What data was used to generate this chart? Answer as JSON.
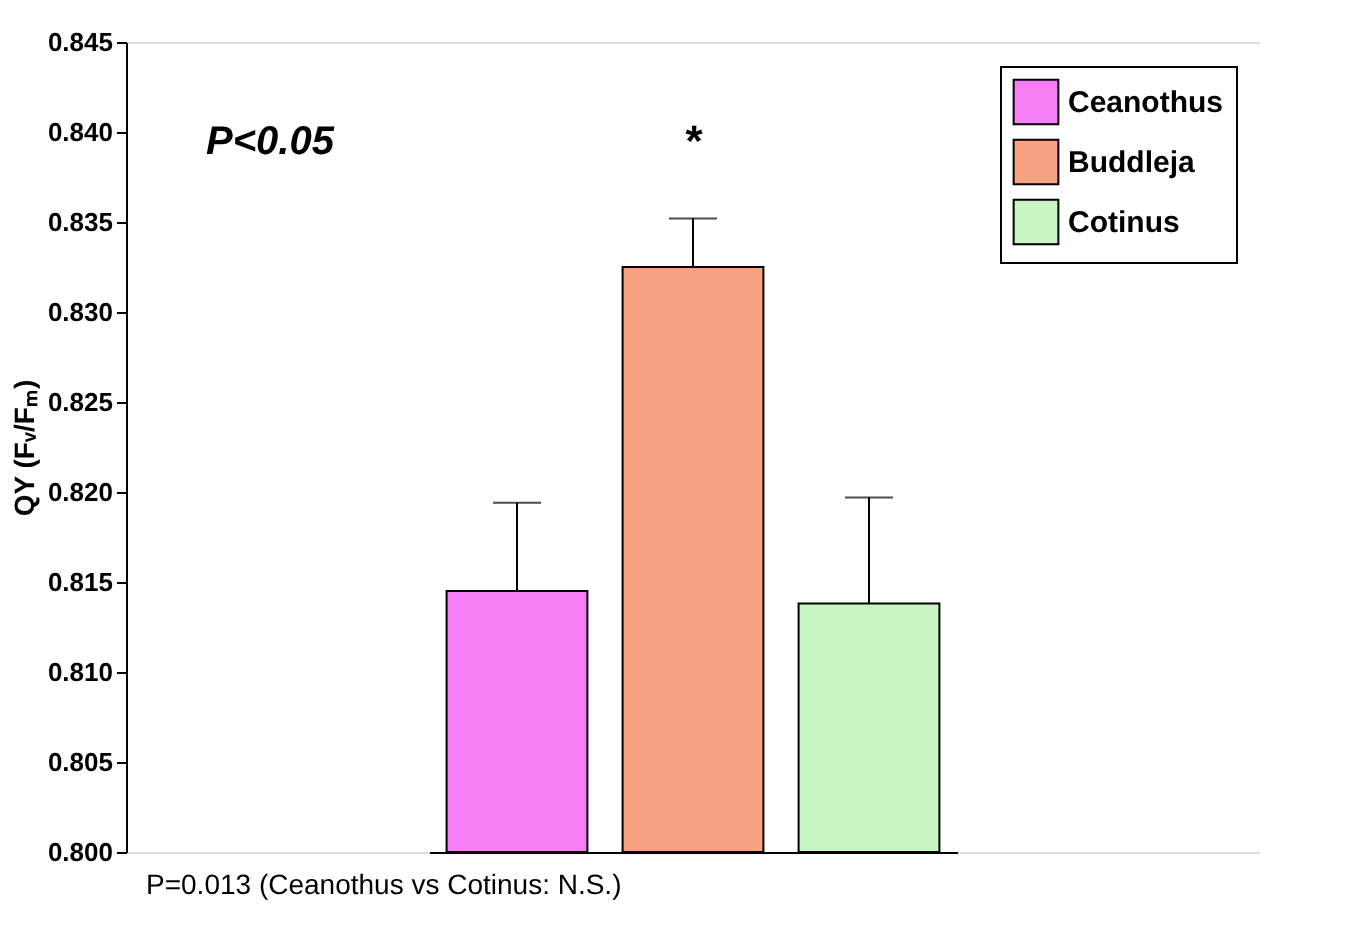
{
  "chart_data": {
    "type": "bar",
    "ylabel": "QY (Fᵥ/Fₘ)",
    "categories": [
      null
    ],
    "series": [
      {
        "name": "Ceanothus",
        "color": "#f57ef5",
        "values": [
          0.8145
        ],
        "errors": [
          0.0049
        ]
      },
      {
        "name": "Buddleja",
        "color": "#f9a283",
        "values": [
          0.8325
        ],
        "errors": [
          0.0027
        ]
      },
      {
        "name": "Cotinus",
        "color": "#c8f6c3",
        "values": [
          0.8138
        ],
        "errors": [
          0.0059
        ]
      }
    ],
    "ylim": [
      0.8,
      0.845
    ],
    "yticks": [
      {
        "value": 0.8,
        "label": "0.800"
      },
      {
        "value": 0.805,
        "label": "0.805"
      },
      {
        "value": 0.81,
        "label": "0.810"
      },
      {
        "value": 0.815,
        "label": "0.815"
      },
      {
        "value": 0.82,
        "label": "0.820"
      },
      {
        "value": 0.825,
        "label": "0.825"
      },
      {
        "value": 0.83,
        "label": "0.830"
      },
      {
        "value": 0.835,
        "label": "0.835"
      },
      {
        "value": 0.84,
        "label": "0.840"
      },
      {
        "value": 0.845,
        "label": "0.845"
      }
    ],
    "tick_labels": "y",
    "grid": false,
    "legend": "top right",
    "annotations": [
      "P<0.05",
      "*",
      "P=0.013 (Ceanothus vs Cotinus: N.S.)"
    ]
  }
}
